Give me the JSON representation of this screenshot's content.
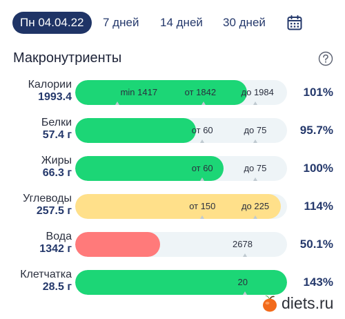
{
  "tabs": [
    {
      "label": "Пн 04.04.22",
      "active": true
    },
    {
      "label": "7 дней",
      "active": false
    },
    {
      "label": "14 дней",
      "active": false
    },
    {
      "label": "30 дней",
      "active": false
    }
  ],
  "section": {
    "title": "Макронутриенты"
  },
  "icons": {
    "calendar": "calendar-icon",
    "help": "question-circle-icon"
  },
  "colors": {
    "navy": "#1f3466",
    "green": "#1cd676",
    "yellow": "#ffe08a",
    "red": "#ff7a7a",
    "track": "#eef4f7"
  },
  "rows": [
    {
      "name": "Калории",
      "amount": "1993.4",
      "percent": "101%",
      "color": "green",
      "fill_fraction": 0.81,
      "markers": [
        {
          "label": "min 1417",
          "pos": 0.3,
          "tick": 0.2
        },
        {
          "label": "от 1842",
          "pos": 0.59,
          "tick": 0.605
        },
        {
          "label": "до 1984",
          "pos": 0.86,
          "tick": 0.85
        }
      ]
    },
    {
      "name": "Белки",
      "amount": "57.4 г",
      "percent": "95.7%",
      "color": "green",
      "fill_fraction": 0.57,
      "markers": [
        {
          "label": "от 60",
          "pos": 0.6,
          "tick": 0.6
        },
        {
          "label": "до 75",
          "pos": 0.85,
          "tick": 0.85
        }
      ]
    },
    {
      "name": "Жиры",
      "amount": "66.3 г",
      "percent": "100%",
      "color": "green",
      "fill_fraction": 0.7,
      "markers": [
        {
          "label": "от 60",
          "pos": 0.6,
          "tick": 0.6
        },
        {
          "label": "до 75",
          "pos": 0.85,
          "tick": 0.85
        }
      ]
    },
    {
      "name": "Углеводы",
      "amount": "257.5 г",
      "percent": "114%",
      "color": "yellow",
      "fill_fraction": 0.97,
      "markers": [
        {
          "label": "от 150",
          "pos": 0.6,
          "tick": 0.6
        },
        {
          "label": "до 225",
          "pos": 0.85,
          "tick": 0.85
        }
      ]
    },
    {
      "name": "Вода",
      "amount": "1342 г",
      "percent": "50.1%",
      "color": "red",
      "fill_fraction": 0.4,
      "markers": [
        {
          "label": "2678",
          "pos": 0.79,
          "tick": 0.8
        }
      ]
    },
    {
      "name": "Клетчатка",
      "amount": "28.5 г",
      "percent": "143%",
      "color": "green",
      "fill_fraction": 1.0,
      "markers": [
        {
          "label": "20",
          "pos": 0.79,
          "tick": 0.8
        }
      ]
    }
  ],
  "watermark": {
    "text": "diets.ru"
  }
}
